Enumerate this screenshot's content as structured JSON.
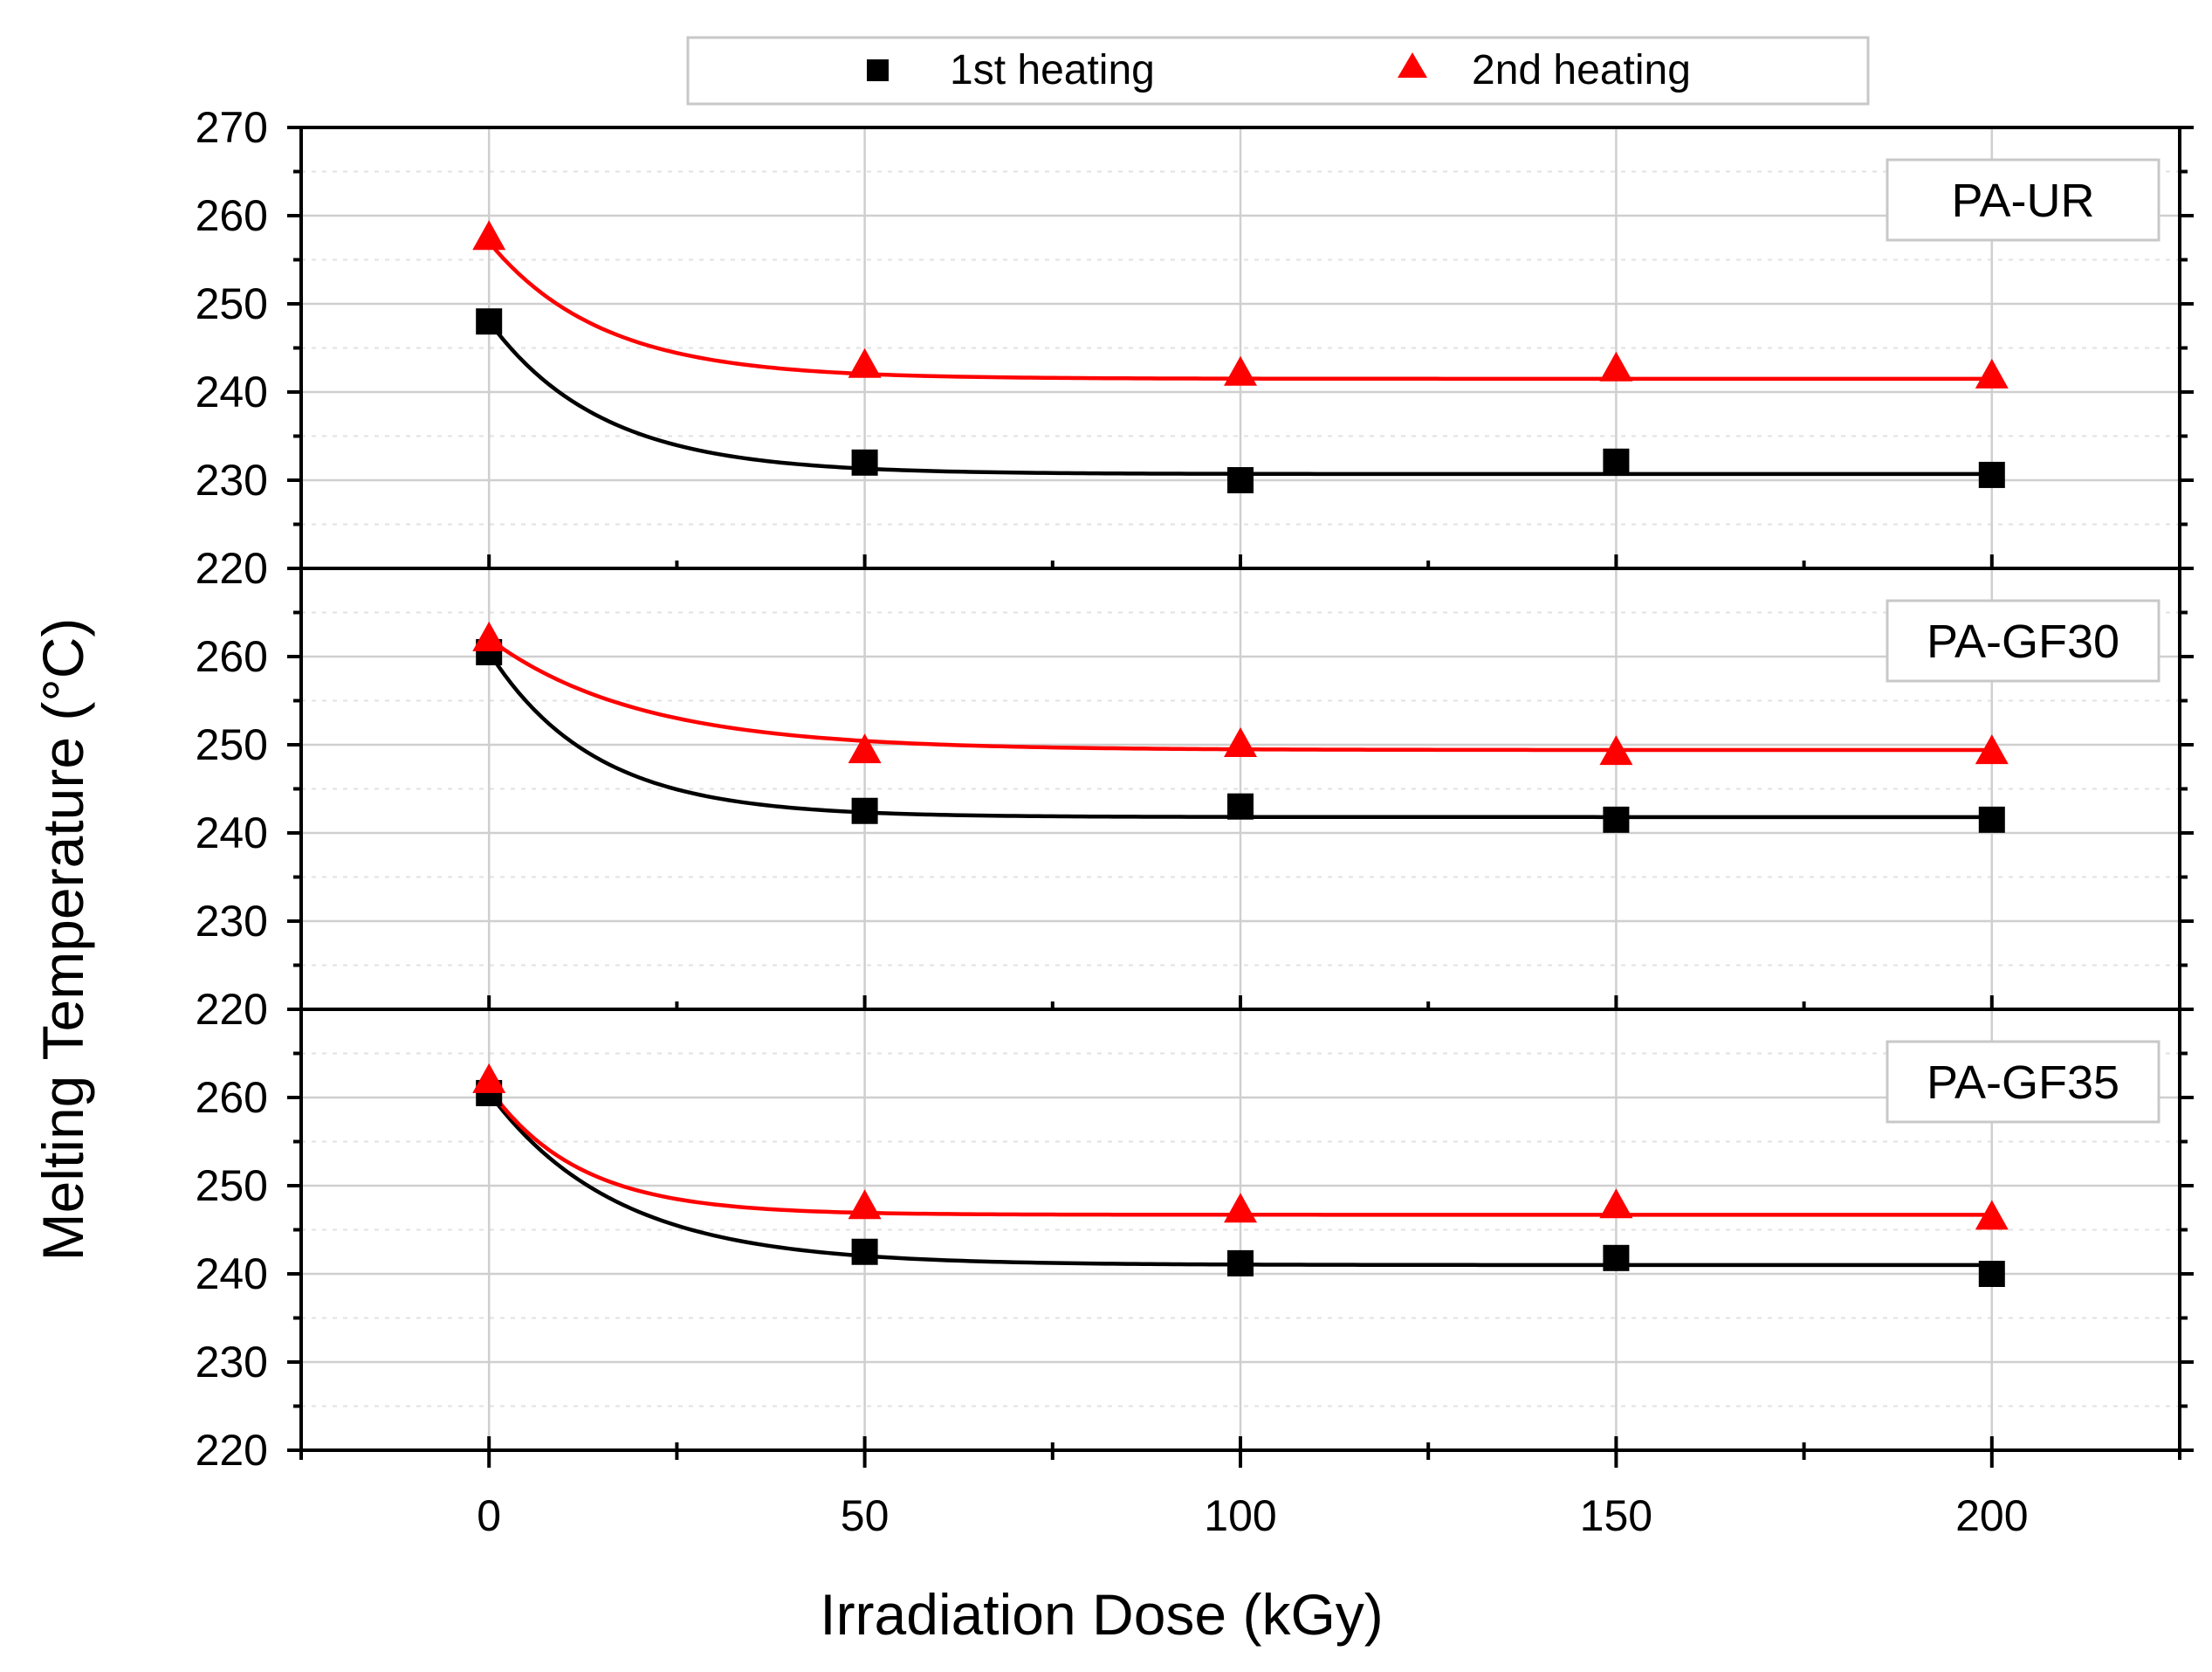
{
  "chart_data": {
    "type": "scatter",
    "xlabel": "Irradiation Dose (kGy)",
    "ylabel": "Melting Temperature (°C)",
    "xlim": [
      -25,
      225
    ],
    "x_ticks": [
      0,
      50,
      100,
      150,
      200
    ],
    "grid": true,
    "legend": {
      "placement": "top-center",
      "entries": [
        {
          "name": "1st heating",
          "marker": "square",
          "color": "#000000"
        },
        {
          "name": "2nd heating",
          "marker": "triangle",
          "color": "#ff0000"
        }
      ]
    },
    "panels": [
      {
        "label": "PA-UR",
        "ylim": [
          220,
          270
        ],
        "y_ticks": [
          220,
          230,
          240,
          250,
          260,
          270
        ],
        "series": [
          {
            "name": "1st heating",
            "x": [
              0,
              50,
              100,
              150,
              200
            ],
            "values": [
              248.0,
              232.0,
              230.0,
              232.1,
              230.6
            ]
          },
          {
            "name": "2nd heating",
            "x": [
              0,
              50,
              100,
              150,
              200
            ],
            "values": [
              257.3,
              242.8,
              241.9,
              242.4,
              241.6
            ]
          }
        ],
        "fits": [
          {
            "name": "1st heating",
            "y0": 248.0,
            "y_inf": 230.7,
            "tau": 15
          },
          {
            "name": "2nd heating",
            "y0": 257.0,
            "y_inf": 241.5,
            "tau": 15
          }
        ]
      },
      {
        "label": "PA-GF30",
        "ylim": [
          220,
          270
        ],
        "y_ticks": [
          220,
          230,
          240,
          250,
          260
        ],
        "series": [
          {
            "name": "1st heating",
            "x": [
              0,
              50,
              100,
              150,
              200
            ],
            "values": [
              260.5,
              242.5,
              243.0,
              241.5,
              241.5
            ]
          },
          {
            "name": "2nd heating",
            "x": [
              0,
              50,
              100,
              150,
              200
            ],
            "values": [
              261.8,
              249.1,
              249.8,
              248.9,
              249.0
            ]
          }
        ],
        "fits": [
          {
            "name": "1st heating",
            "y0": 260.5,
            "y_inf": 241.8,
            "tau": 14
          },
          {
            "name": "2nd heating",
            "y0": 262.0,
            "y_inf": 249.4,
            "tau": 20
          }
        ]
      },
      {
        "label": "PA-GF35",
        "ylim": [
          220,
          270
        ],
        "y_ticks": [
          220,
          230,
          240,
          250,
          260
        ],
        "series": [
          {
            "name": "1st heating",
            "x": [
              0,
              50,
              100,
              150,
              200
            ],
            "values": [
              260.5,
              242.5,
              241.2,
              241.8,
              240.0
            ]
          },
          {
            "name": "2nd heating",
            "x": [
              0,
              50,
              100,
              150,
              200
            ],
            "values": [
              261.7,
              247.4,
              247.0,
              247.5,
              246.2
            ]
          }
        ],
        "fits": [
          {
            "name": "1st heating",
            "y0": 260.5,
            "y_inf": 241.0,
            "tau": 17
          },
          {
            "name": "2nd heating",
            "y0": 261.0,
            "y_inf": 246.7,
            "tau": 12
          }
        ]
      }
    ]
  }
}
